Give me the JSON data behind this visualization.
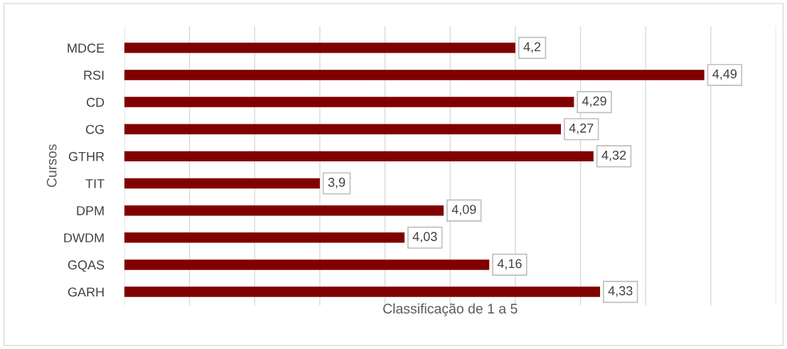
{
  "chart_data": {
    "type": "bar",
    "orientation": "horizontal",
    "xlabel": "Classificação de 1 a 5",
    "ylabel": "Cursos",
    "categories": [
      "MDCE",
      "RSI",
      "CD",
      "CG",
      "GTHR",
      "TIT",
      "DPM",
      "DWDM",
      "GQAS",
      "GARH"
    ],
    "values": [
      4.2,
      4.49,
      4.29,
      4.27,
      4.32,
      3.9,
      4.09,
      4.03,
      4.16,
      4.33
    ],
    "value_labels": [
      "4,2",
      "4,49",
      "4,29",
      "4,27",
      "4,32",
      "3,9",
      "4,09",
      "4,03",
      "4,16",
      "4,33"
    ],
    "color": "#800000",
    "xlim": [
      3.6,
      4.6
    ],
    "xticks": [
      {
        "value": 3.6,
        "label": null
      },
      {
        "value": 3.7,
        "label": null
      },
      {
        "value": 3.8,
        "label": null
      },
      {
        "value": 3.9,
        "label": null
      },
      {
        "value": 4.0,
        "label": null
      },
      {
        "value": 4.1,
        "label": null
      },
      {
        "value": 4.2,
        "label": null
      },
      {
        "value": 4.3,
        "label": null
      },
      {
        "value": 4.4,
        "label": null
      },
      {
        "value": 4.5,
        "label": null
      },
      {
        "value": 4.6,
        "label": null
      }
    ],
    "grid": "x",
    "tick_labels": "y",
    "legend": false
  }
}
